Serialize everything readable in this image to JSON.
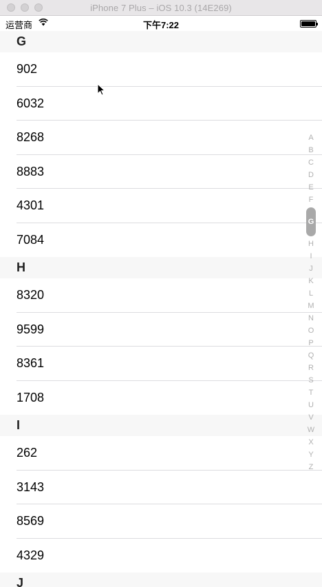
{
  "window": {
    "title": "iPhone 7 Plus – iOS 10.3 (14E269)"
  },
  "status_bar": {
    "carrier": "运营商",
    "time": "下午7:22"
  },
  "sections": [
    {
      "header": "G",
      "rows": [
        "902",
        "6032",
        "8268",
        "8883",
        "4301",
        "7084"
      ]
    },
    {
      "header": "H",
      "rows": [
        "8320",
        "9599",
        "8361",
        "1708"
      ]
    },
    {
      "header": "I",
      "rows": [
        "262",
        "3143",
        "8569",
        "4329"
      ]
    },
    {
      "header": "J",
      "rows": []
    }
  ],
  "index": {
    "letters": [
      "A",
      "B",
      "C",
      "D",
      "E",
      "F",
      "G",
      "H",
      "I",
      "J",
      "K",
      "L",
      "M",
      "N",
      "O",
      "P",
      "Q",
      "R",
      "S",
      "T",
      "U",
      "V",
      "W",
      "X",
      "Y",
      "Z"
    ],
    "selected": "G"
  }
}
